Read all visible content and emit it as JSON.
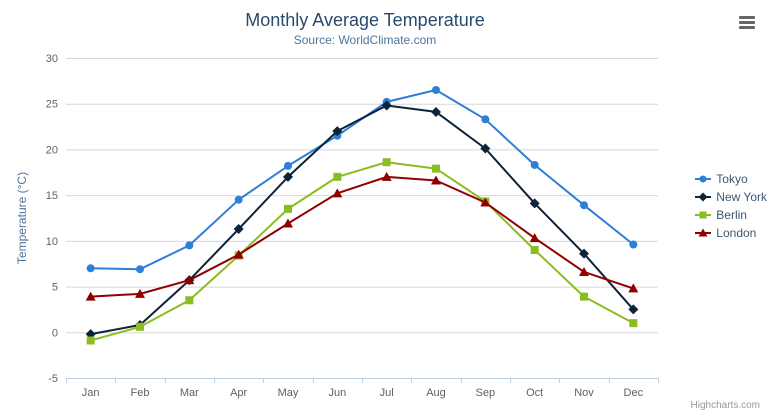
{
  "chart_data": {
    "type": "line",
    "title": "Monthly Average Temperature",
    "subtitle": "Source: WorldClimate.com",
    "xlabel": "",
    "ylabel": "Temperature (°C)",
    "ylim": [
      -5,
      30
    ],
    "yticks": [
      -5,
      0,
      5,
      10,
      15,
      20,
      25,
      30
    ],
    "grid": true,
    "legend_position": "right",
    "categories": [
      "Jan",
      "Feb",
      "Mar",
      "Apr",
      "May",
      "Jun",
      "Jul",
      "Aug",
      "Sep",
      "Oct",
      "Nov",
      "Dec"
    ],
    "series": [
      {
        "name": "Tokyo",
        "color": "#2f7ed8",
        "marker": "circle",
        "values": [
          7.0,
          6.9,
          9.5,
          14.5,
          18.2,
          21.5,
          25.2,
          26.5,
          23.3,
          18.3,
          13.9,
          9.6
        ]
      },
      {
        "name": "New York",
        "color": "#0d233a",
        "marker": "diamond",
        "values": [
          -0.2,
          0.8,
          5.7,
          11.3,
          17.0,
          22.0,
          24.8,
          24.1,
          20.1,
          14.1,
          8.6,
          2.5
        ]
      },
      {
        "name": "Berlin",
        "color": "#8bbc21",
        "marker": "square",
        "values": [
          -0.9,
          0.6,
          3.5,
          8.4,
          13.5,
          17.0,
          18.6,
          17.9,
          14.3,
          9.0,
          3.9,
          1.0
        ]
      },
      {
        "name": "London",
        "color": "#910000",
        "marker": "triangle",
        "values": [
          3.9,
          4.2,
          5.7,
          8.5,
          11.9,
          15.2,
          17.0,
          16.6,
          14.2,
          10.3,
          6.6,
          4.8
        ]
      }
    ]
  },
  "credits": "Highcharts.com",
  "icons": {
    "export_menu": "hamburger-icon"
  }
}
